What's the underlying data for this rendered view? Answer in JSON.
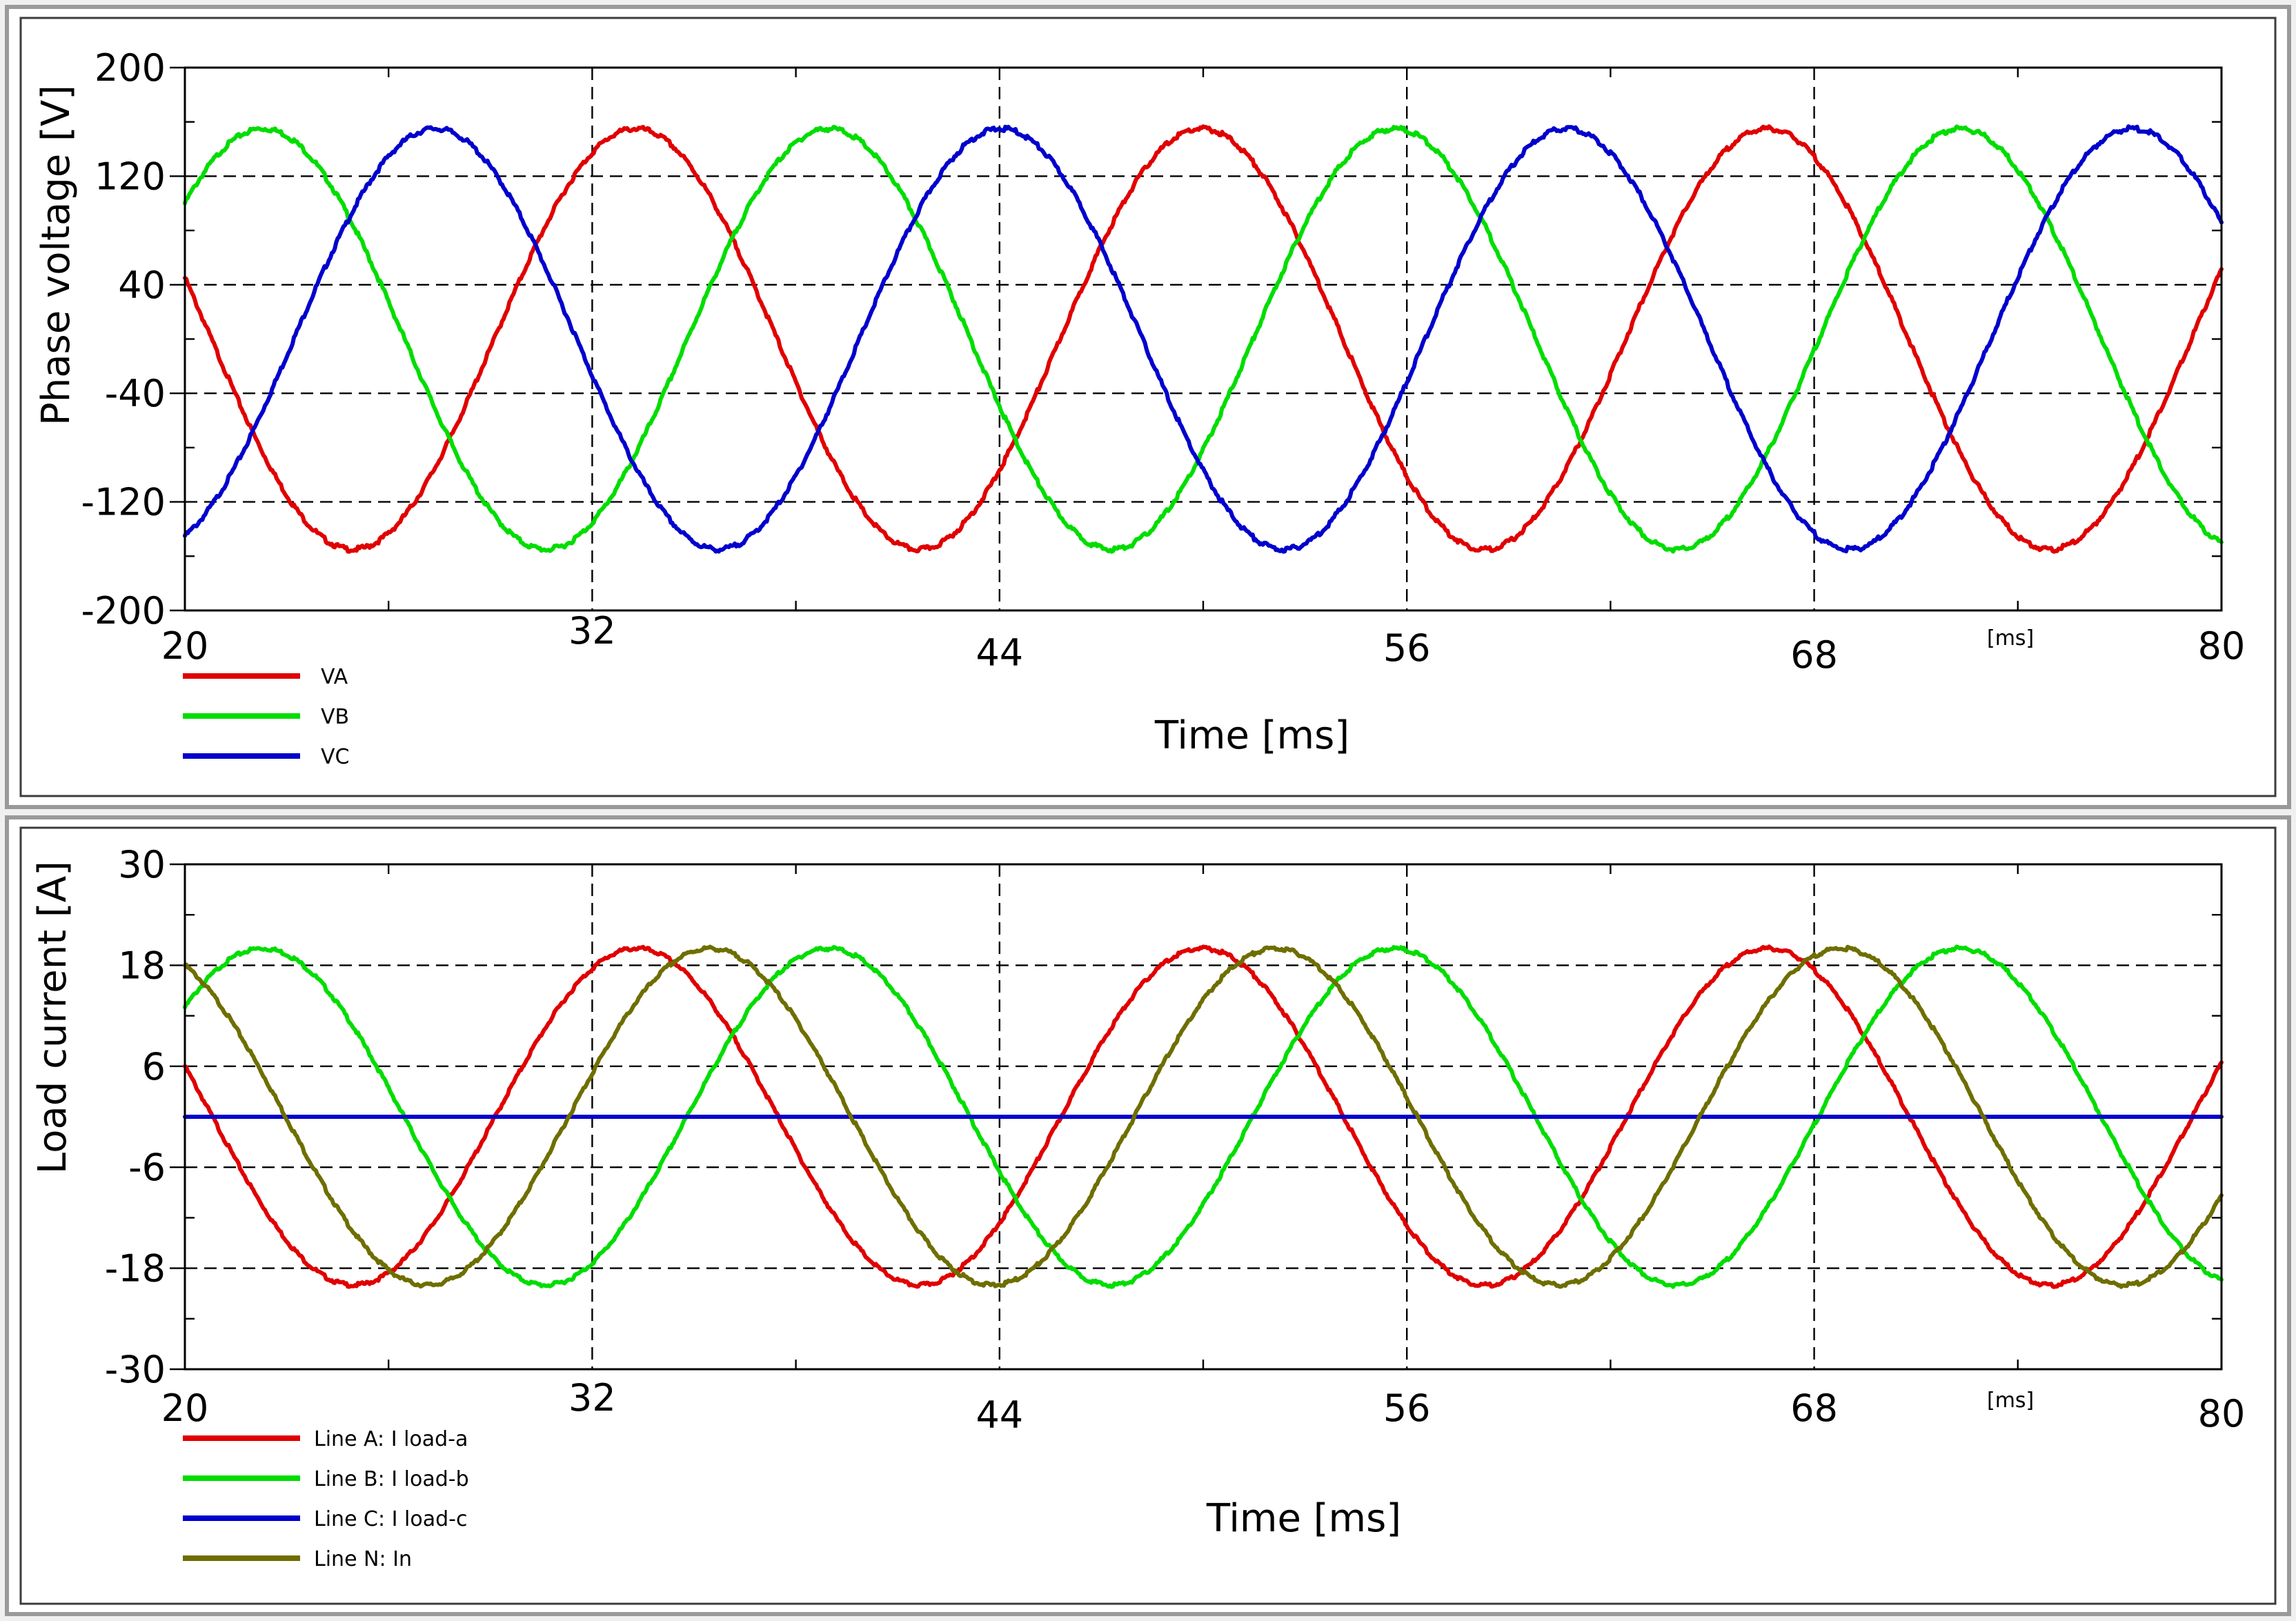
{
  "chart_data": [
    {
      "type": "line",
      "title": "",
      "ylabel": "Phase voltage [V]",
      "xlabel": "Time [ms]",
      "x_unit_label": "[ms]",
      "xlim": [
        20,
        80
      ],
      "ylim": [
        -200,
        200
      ],
      "xticks": [
        "20",
        "32",
        "44",
        "56",
        "68",
        "80"
      ],
      "yticks": [
        "200",
        "120",
        "40",
        "-40",
        "-120",
        "-200"
      ],
      "grid": true,
      "legend_position": "bottom-left",
      "series": [
        {
          "name": "VA",
          "color": "#e00000",
          "amplitude": 155,
          "frequency_hz": 60,
          "value_at_20ms": 45,
          "trend": "falling"
        },
        {
          "name": "VB",
          "color": "#00dd00",
          "amplitude": 155,
          "frequency_hz": 60,
          "value_at_20ms": 100,
          "trend": "rising"
        },
        {
          "name": "VC",
          "color": "#0000cc",
          "amplitude": 155,
          "frequency_hz": 60,
          "value_at_20ms": -145,
          "trend": "rising"
        }
      ]
    },
    {
      "type": "line",
      "title": "",
      "ylabel": "Load current [A]",
      "xlabel": "Time [ms]",
      "x_unit_label": "[ms]",
      "xlim": [
        20,
        80
      ],
      "ylim": [
        -30,
        30
      ],
      "xticks": [
        "20",
        "32",
        "44",
        "56",
        "68",
        "80"
      ],
      "yticks": [
        "30",
        "18",
        "6",
        "-6",
        "-18",
        "-30"
      ],
      "grid": true,
      "legend_position": "bottom-left",
      "series": [
        {
          "name": "Line A: I load-a",
          "color": "#e00000",
          "amplitude": 20,
          "frequency_hz": 60,
          "value_at_20ms": 6,
          "trend": "falling"
        },
        {
          "name": "Line B: I load-b",
          "color": "#00dd00",
          "amplitude": 20,
          "frequency_hz": 60,
          "value_at_20ms": 13,
          "trend": "rising"
        },
        {
          "name": "Line C: I load-c",
          "color": "#0000cc",
          "amplitude": 0,
          "frequency_hz": 60,
          "value_at_20ms": 0,
          "trend": "flat"
        },
        {
          "name": "Line N: In",
          "color": "#6e6e00",
          "amplitude": 20,
          "frequency_hz": 60,
          "value_at_20ms": 18,
          "trend": "falling"
        }
      ]
    }
  ]
}
